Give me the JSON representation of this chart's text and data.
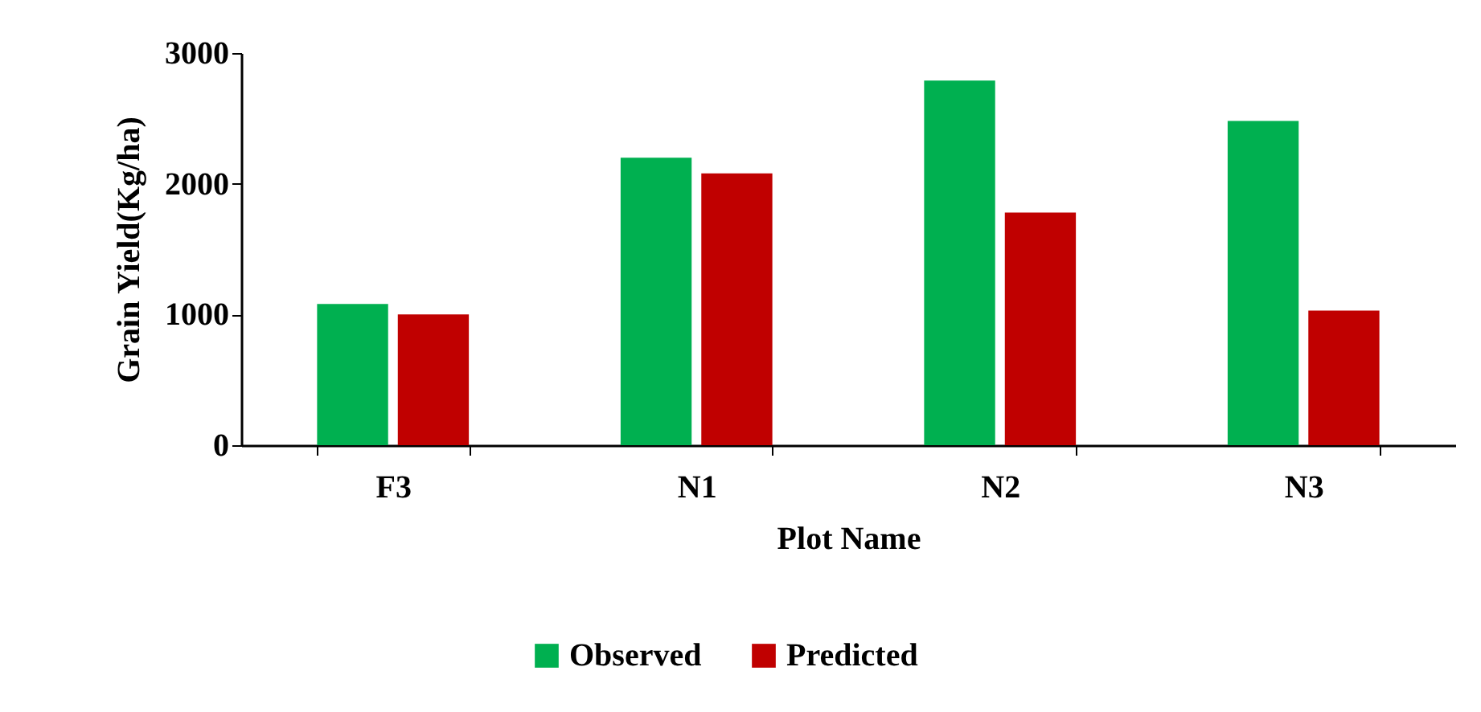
{
  "chart_data": {
    "type": "bar",
    "xlabel": "Plot Name",
    "ylabel": "Grain Yield(Kg/ha)",
    "categories": [
      "F3",
      "N1",
      "N2",
      "N3"
    ],
    "series": [
      {
        "name": "Observed",
        "color": "#00b050",
        "values": [
          1080,
          2200,
          2790,
          2480
        ]
      },
      {
        "name": "Predicted",
        "color": "#c00000",
        "values": [
          1000,
          2080,
          1780,
          1030
        ]
      }
    ],
    "ylim": [
      0,
      3000
    ],
    "yticks": [
      0,
      1000,
      2000,
      3000
    ],
    "grid": false,
    "legend": "bottom"
  }
}
